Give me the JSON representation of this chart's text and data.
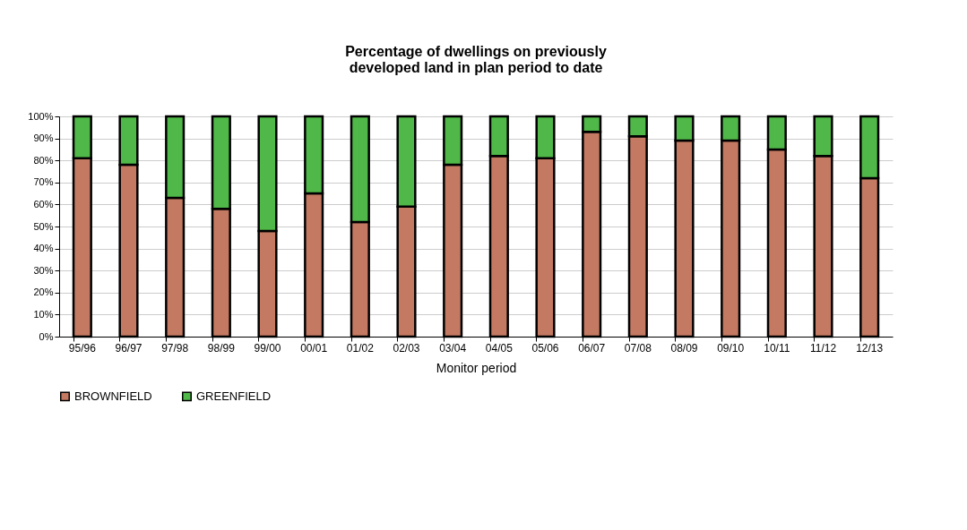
{
  "chart_data": {
    "type": "bar",
    "stacked": true,
    "title": "Percentage of dwellings on previously\ndeveloped land in plan period to date",
    "xlabel": "Monitor period",
    "categories": [
      "95/96",
      "96/97",
      "97/98",
      "98/99",
      "99/00",
      "00/01",
      "01/02",
      "02/03",
      "03/04",
      "04/05",
      "05/06",
      "06/07",
      "07/08",
      "08/09",
      "09/10",
      "10/11",
      "11/12",
      "12/13"
    ],
    "series": [
      {
        "name": "BROWNFIELD",
        "color": "#c47a62",
        "values": [
          81,
          78,
          63,
          58,
          48,
          65,
          52,
          59,
          78,
          82,
          81,
          93,
          91,
          89,
          89,
          85,
          82,
          72
        ]
      },
      {
        "name": "GREENFIELD",
        "color": "#4fb848",
        "values": [
          19,
          22,
          37,
          42,
          52,
          35,
          48,
          41,
          22,
          18,
          19,
          7,
          9,
          11,
          11,
          15,
          18,
          28
        ]
      }
    ],
    "ylim": [
      0,
      100
    ],
    "yticks": [
      {
        "value": 0,
        "label": "0%"
      },
      {
        "value": 10,
        "label": "10%"
      },
      {
        "value": 20,
        "label": "20%"
      },
      {
        "value": 30,
        "label": "30%"
      },
      {
        "value": 40,
        "label": "40%"
      },
      {
        "value": 50,
        "label": "50%"
      },
      {
        "value": 60,
        "label": "60%"
      },
      {
        "value": 70,
        "label": "70%"
      },
      {
        "value": 80,
        "label": "80%"
      },
      {
        "value": 90,
        "label": "90%"
      },
      {
        "value": 100,
        "label": "100%"
      }
    ],
    "grid": true,
    "legend": "bottom"
  }
}
